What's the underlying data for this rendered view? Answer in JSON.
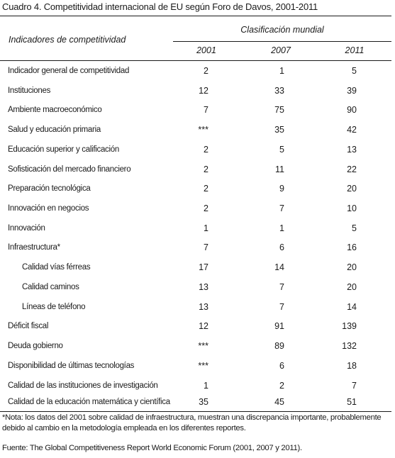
{
  "table": {
    "title": "Cuadro 4. Competitividad internacional de EU según Foro de Davos, 2001-2011",
    "header": {
      "indicator_label": "Indicadores de competitividad",
      "group_label": "Clasificación mundial",
      "years": [
        "2001",
        "2007",
        "2011"
      ]
    },
    "rows": [
      {
        "label": "Indicador general de competitividad",
        "sub": false,
        "values": [
          "2",
          "1",
          "5"
        ]
      },
      {
        "label": "Instituciones",
        "sub": false,
        "values": [
          "12",
          "33",
          "39"
        ]
      },
      {
        "label": "Ambiente macroeconómico",
        "sub": false,
        "values": [
          "7",
          "75",
          "90"
        ]
      },
      {
        "label": "Salud y educación primaria",
        "sub": false,
        "values": [
          "***",
          "35",
          "42"
        ]
      },
      {
        "label": "Educación superior y calificación",
        "sub": false,
        "values": [
          "2",
          "5",
          "13"
        ]
      },
      {
        "label": "Sofisticación del mercado financiero",
        "sub": false,
        "values": [
          "2",
          "11",
          "22"
        ]
      },
      {
        "label": "Preparación tecnológica",
        "sub": false,
        "values": [
          "2",
          "9",
          "20"
        ]
      },
      {
        "label": "Innovación en negocios",
        "sub": false,
        "values": [
          "2",
          "7",
          "10"
        ]
      },
      {
        "label": "Innovación",
        "sub": false,
        "values": [
          "1",
          "1",
          "5"
        ]
      },
      {
        "label": "Infraestructura*",
        "sub": false,
        "values": [
          "7",
          "6",
          "16"
        ]
      },
      {
        "label": "Calidad vías férreas",
        "sub": true,
        "values": [
          "17",
          "14",
          "20"
        ]
      },
      {
        "label": "Calidad caminos",
        "sub": true,
        "values": [
          "13",
          "7",
          "20"
        ]
      },
      {
        "label": "Líneas de teléfono",
        "sub": true,
        "values": [
          "13",
          "7",
          "14"
        ]
      },
      {
        "label": "Déficit fiscal",
        "sub": false,
        "values": [
          "12",
          "91",
          "139"
        ]
      },
      {
        "label": "Deuda gobierno",
        "sub": false,
        "values": [
          "***",
          "89",
          "132"
        ]
      },
      {
        "label": "Disponibilidad de últimas tecnologías",
        "sub": false,
        "values": [
          "***",
          "6",
          "18"
        ]
      },
      {
        "label": "Calidad de las instituciones de investigación",
        "sub": false,
        "values": [
          "1",
          "2",
          "7"
        ]
      },
      {
        "label": "Calidad de la educación matemática y científica",
        "sub": false,
        "values": [
          "35",
          "45",
          "51"
        ]
      }
    ],
    "note": "*Nota: los datos del 2001 sobre calidad de infraestructura, muestran una discrepancia importante, probablemente debido al cambio en la metodología empleada en los diferentes reportes.",
    "source": "Fuente: The Global Competitiveness Report World Economic Forum (2001, 2007 y 2011)."
  }
}
